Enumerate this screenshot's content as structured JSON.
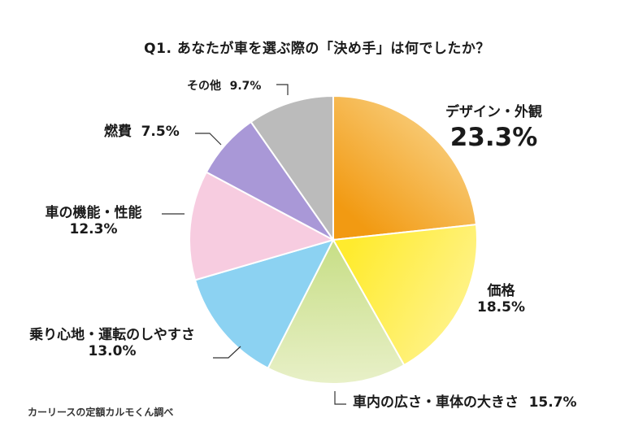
{
  "chart_data": {
    "type": "pie",
    "title": "Q1. あなたが車を選ぶ際の「決め手」は何でしたか？",
    "slices": [
      {
        "name": "デザイン・外観",
        "value": 23.3,
        "label": "23.3%",
        "color_from": "#F29A12",
        "color_to": "#F9D285"
      },
      {
        "name": "価格",
        "value": 18.5,
        "label": "18.5%",
        "color_from": "#FFEB2E",
        "color_to": "#FFF38F"
      },
      {
        "name": "車内の広さ・車体の大きさ",
        "value": 15.7,
        "label": "15.7%",
        "color_from": "#C7DE85",
        "color_to": "#E8F0C8"
      },
      {
        "name": "乗り心地・運転のしやすさ",
        "value": 13.0,
        "label": "13.0%",
        "color_from": "#8CD2F2",
        "color_to": "#8CD2F2"
      },
      {
        "name": "車の機能・性能",
        "value": 12.3,
        "label": "12.3%",
        "color_from": "#F7CCE0",
        "color_to": "#F7CCE0"
      },
      {
        "name": "燃費",
        "value": 7.5,
        "label": "7.5%",
        "color_from": "#A998D7",
        "color_to": "#A998D7"
      },
      {
        "name": "その他",
        "value": 9.7,
        "label": "9.7%",
        "color_from": "#BBBBBB",
        "color_to": "#BBBBBB"
      }
    ]
  },
  "source": "カーリースの定額カルモくん調べ"
}
